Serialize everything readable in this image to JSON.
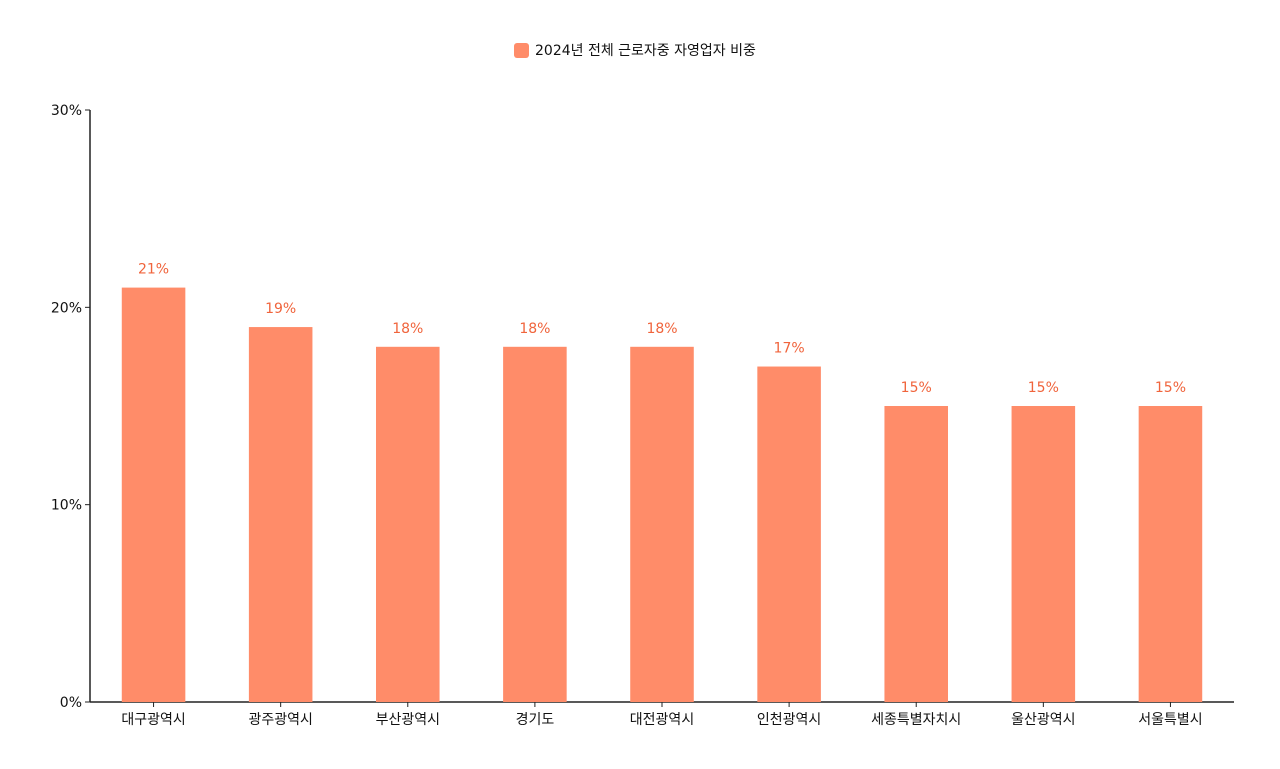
{
  "chart_data": {
    "type": "bar",
    "categories": [
      "대구광역시",
      "광주광역시",
      "부산광역시",
      "경기도",
      "대전광역시",
      "인천광역시",
      "세종특별자치시",
      "울산광역시",
      "서울특별시"
    ],
    "series": [
      {
        "name": "2024년 전체 근로자중 자영업자 비중",
        "values": [
          21,
          19,
          18,
          18,
          18,
          17,
          15,
          15,
          15
        ],
        "labels": [
          "21%",
          "19%",
          "18%",
          "18%",
          "18%",
          "17%",
          "15%",
          "15%",
          "15%"
        ],
        "color": "#FF8C69"
      }
    ],
    "ylim": [
      0,
      30
    ],
    "yticks": [
      0,
      10,
      20,
      30
    ],
    "ytick_labels": [
      "0%",
      "10%",
      "20%",
      "30%"
    ],
    "legend_position": "top-center",
    "label_color": "#F0643C",
    "grid": false
  }
}
